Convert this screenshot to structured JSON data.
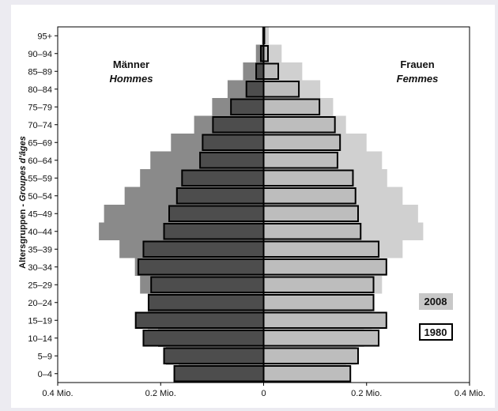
{
  "chart_data": {
    "type": "bar",
    "subtype": "population-pyramid",
    "categories": [
      "0–4",
      "5–9",
      "10–14",
      "15–19",
      "20–24",
      "25–29",
      "30–34",
      "35–39",
      "40–44",
      "45–49",
      "50–54",
      "55–59",
      "60–64",
      "65–69",
      "70–74",
      "75–79",
      "80–84",
      "85–89",
      "90–94",
      "95+"
    ],
    "ylabel_main": "Altersgruppen",
    "ylabel_sep": " - ",
    "ylabel_italic": "Groupes d'âges",
    "left_title": "Männer",
    "left_subtitle": "Hommes",
    "right_title": "Frauen",
    "right_subtitle": "Femmes",
    "x_tick_labels": [
      "0.4 Mio.",
      "0.2 Mio.",
      "0",
      "0.2 Mio.",
      "0.4 Mio."
    ],
    "x_ticks": [
      -0.4,
      -0.2,
      0,
      0.2,
      0.4
    ],
    "xlim": [
      -0.4,
      0.4
    ],
    "colors": {
      "men_2008": "#8a8a8a",
      "men_1980": "#4d4d4d",
      "women_2008": "#d0d0d0",
      "women_1980": "#bdbdbd",
      "outline_1980": "#000000"
    },
    "series": [
      {
        "name": "2008",
        "side": "men",
        "values": [
          0.165,
          0.19,
          0.205,
          0.225,
          0.225,
          0.24,
          0.25,
          0.28,
          0.32,
          0.31,
          0.27,
          0.24,
          0.22,
          0.18,
          0.135,
          0.1,
          0.07,
          0.04,
          0.015,
          0.003
        ]
      },
      {
        "name": "2008",
        "side": "women",
        "values": [
          0.16,
          0.18,
          0.195,
          0.21,
          0.215,
          0.23,
          0.24,
          0.27,
          0.31,
          0.3,
          0.27,
          0.24,
          0.23,
          0.2,
          0.16,
          0.135,
          0.11,
          0.075,
          0.035,
          0.01
        ]
      },
      {
        "name": "1980",
        "side": "men",
        "values": [
          0.175,
          0.195,
          0.235,
          0.25,
          0.225,
          0.22,
          0.245,
          0.235,
          0.195,
          0.185,
          0.17,
          0.16,
          0.125,
          0.12,
          0.1,
          0.065,
          0.035,
          0.016,
          0.007,
          0.002
        ]
      },
      {
        "name": "1980",
        "side": "women",
        "values": [
          0.17,
          0.185,
          0.225,
          0.24,
          0.215,
          0.215,
          0.24,
          0.225,
          0.19,
          0.185,
          0.18,
          0.175,
          0.145,
          0.15,
          0.14,
          0.11,
          0.07,
          0.03,
          0.01,
          0.003
        ]
      }
    ],
    "legend": [
      {
        "label": "2008",
        "style": "filled-gray"
      },
      {
        "label": "1980",
        "style": "outlined"
      }
    ],
    "legend_position": "bottom-right"
  }
}
